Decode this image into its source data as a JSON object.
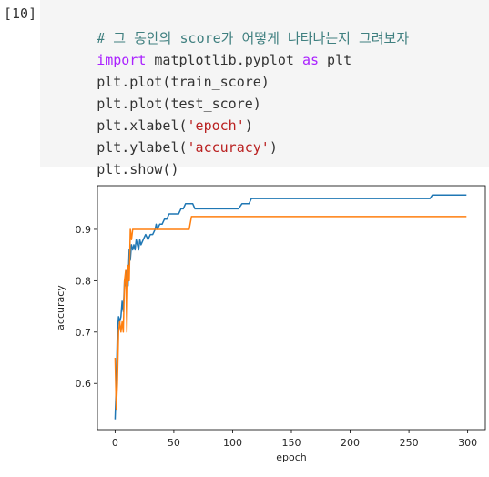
{
  "prompt": "[10]",
  "code": {
    "line1": "# 그 동안의 score가 어떻게 나타나는지 그려보자",
    "line2_kw1": "import",
    "line2_mid": " matplotlib.pyplot ",
    "line2_kw2": "as",
    "line2_end": " plt",
    "line3": "plt.plot(train_score)",
    "line4": "plt.plot(test_score)",
    "line5_a": "plt.xlabel(",
    "line5_s": "'epoch'",
    "line5_b": ")",
    "line6_a": "plt.ylabel(",
    "line6_s": "'accuracy'",
    "line6_b": ")",
    "line7": "plt.show()"
  },
  "colors": {
    "code_bg": "#f5f5f5",
    "comment": "#408080",
    "keyword": "#aa22ff",
    "string": "#ba2121",
    "series_train": "#1f77b4",
    "series_test": "#ff7f0e"
  },
  "chart_data": {
    "type": "line",
    "xlabel": "epoch",
    "ylabel": "accuracy",
    "xlim": [
      -15,
      315
    ],
    "ylim": [
      0.51,
      0.985
    ],
    "xticks": [
      0,
      50,
      100,
      150,
      200,
      250,
      300
    ],
    "yticks": [
      0.6,
      0.7,
      0.8,
      0.9
    ],
    "xtick_labels": [
      "0",
      "50",
      "100",
      "150",
      "200",
      "250",
      "300"
    ],
    "ytick_labels": [
      "0.6",
      "0.7",
      "0.8",
      "0.9"
    ],
    "grid": false,
    "series": [
      {
        "color": "#1f77b4",
        "points": [
          [
            0,
            0.53
          ],
          [
            1,
            0.6
          ],
          [
            2,
            0.7
          ],
          [
            3,
            0.73
          ],
          [
            4,
            0.72
          ],
          [
            5,
            0.73
          ],
          [
            6,
            0.76
          ],
          [
            7,
            0.74
          ],
          [
            8,
            0.8
          ],
          [
            9,
            0.79
          ],
          [
            10,
            0.82
          ],
          [
            11,
            0.79
          ],
          [
            12,
            0.86
          ],
          [
            13,
            0.84
          ],
          [
            14,
            0.87
          ],
          [
            15,
            0.86
          ],
          [
            16,
            0.87
          ],
          [
            17,
            0.86
          ],
          [
            18,
            0.88
          ],
          [
            19,
            0.87
          ],
          [
            20,
            0.86
          ],
          [
            21,
            0.88
          ],
          [
            22,
            0.87
          ],
          [
            24,
            0.88
          ],
          [
            26,
            0.89
          ],
          [
            28,
            0.88
          ],
          [
            30,
            0.89
          ],
          [
            32,
            0.89
          ],
          [
            34,
            0.9
          ],
          [
            35,
            0.91
          ],
          [
            36,
            0.9
          ],
          [
            38,
            0.91
          ],
          [
            40,
            0.91
          ],
          [
            42,
            0.92
          ],
          [
            44,
            0.92
          ],
          [
            46,
            0.93
          ],
          [
            50,
            0.93
          ],
          [
            54,
            0.93
          ],
          [
            56,
            0.94
          ],
          [
            58,
            0.94
          ],
          [
            60,
            0.95
          ],
          [
            66,
            0.95
          ],
          [
            68,
            0.94
          ],
          [
            80,
            0.94
          ],
          [
            105,
            0.94
          ],
          [
            108,
            0.95
          ],
          [
            114,
            0.95
          ],
          [
            116,
            0.96
          ],
          [
            150,
            0.96
          ],
          [
            200,
            0.96
          ],
          [
            268,
            0.96
          ],
          [
            270,
            0.967
          ],
          [
            299,
            0.967
          ]
        ]
      },
      {
        "color": "#ff7f0e",
        "points": [
          [
            0,
            0.65
          ],
          [
            1,
            0.55
          ],
          [
            2,
            0.6
          ],
          [
            3,
            0.7
          ],
          [
            4,
            0.72
          ],
          [
            5,
            0.7
          ],
          [
            6,
            0.72
          ],
          [
            7,
            0.7
          ],
          [
            8,
            0.8
          ],
          [
            9,
            0.82
          ],
          [
            10,
            0.7
          ],
          [
            11,
            0.83
          ],
          [
            12,
            0.8
          ],
          [
            13,
            0.9
          ],
          [
            14,
            0.88
          ],
          [
            15,
            0.9
          ],
          [
            20,
            0.9
          ],
          [
            40,
            0.9
          ],
          [
            63,
            0.9
          ],
          [
            65,
            0.925
          ],
          [
            100,
            0.925
          ],
          [
            200,
            0.925
          ],
          [
            299,
            0.925
          ]
        ]
      }
    ]
  }
}
